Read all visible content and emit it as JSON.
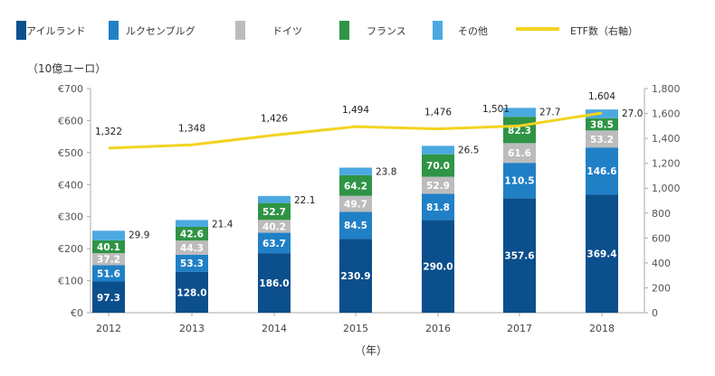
{
  "chart_data": {
    "type": "bar",
    "stacked": true,
    "categories": [
      "2012",
      "2013",
      "2014",
      "2015",
      "2016",
      "2017",
      "2018"
    ],
    "series": [
      {
        "name": "アイルランド",
        "color": "#0b4f8d",
        "values": [
          97.3,
          128.0,
          186.0,
          230.9,
          290.0,
          357.6,
          369.4
        ]
      },
      {
        "name": "ルクセンブルグ",
        "color": "#2080c6",
        "values": [
          51.6,
          53.3,
          63.7,
          84.5,
          81.8,
          110.5,
          146.6
        ]
      },
      {
        "name": "ドイツ",
        "color": "#bcbcbc",
        "values": [
          37.2,
          44.3,
          40.2,
          49.7,
          52.9,
          61.6,
          53.2
        ]
      },
      {
        "name": "フランス",
        "color": "#2f9445",
        "values": [
          40.1,
          42.6,
          52.7,
          64.2,
          70.0,
          82.3,
          38.5
        ]
      },
      {
        "name": "その他",
        "color": "#4ca9e0",
        "values": [
          29.9,
          21.4,
          22.1,
          23.8,
          26.5,
          27.7,
          27.0
        ]
      }
    ],
    "line_series": {
      "name": "ETF数（右軸）",
      "color": "#f3d320",
      "values": [
        1322,
        1348,
        1426,
        1494,
        1476,
        1501,
        1604
      ],
      "labels": [
        "1,322",
        "1,348",
        "1,426",
        "1,494",
        "1,476",
        "1,501",
        "1,604"
      ]
    },
    "ylabel": "（10億ユーロ）",
    "xlabel": "（年）",
    "ylim": [
      0,
      700
    ],
    "y_ticks": [
      "€0",
      "€100",
      "€200",
      "€300",
      "€400",
      "€500",
      "€600",
      "€700"
    ],
    "y2lim": [
      0,
      1800
    ],
    "y2_ticks": [
      "0",
      "200",
      "400",
      "600",
      "800",
      "1,000",
      "1,200",
      "1,400",
      "1,600",
      "1,800"
    ],
    "grid": false,
    "legend_placement": "top"
  }
}
